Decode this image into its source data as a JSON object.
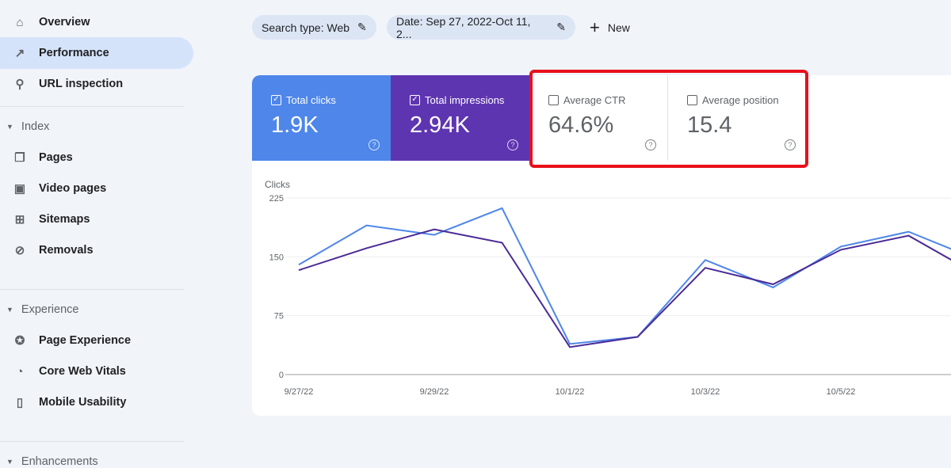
{
  "sidebar": {
    "items": [
      {
        "label": "Overview",
        "icon": "home-icon"
      },
      {
        "label": "Performance",
        "icon": "trending-up-icon",
        "active": true
      },
      {
        "label": "URL inspection",
        "icon": "search-icon"
      }
    ],
    "sections": [
      {
        "label": "Index",
        "items": [
          {
            "label": "Pages",
            "icon": "pages-icon"
          },
          {
            "label": "Video pages",
            "icon": "video-pages-icon"
          },
          {
            "label": "Sitemaps",
            "icon": "sitemap-icon"
          },
          {
            "label": "Removals",
            "icon": "eye-off-icon"
          }
        ]
      },
      {
        "label": "Experience",
        "items": [
          {
            "label": "Page Experience",
            "icon": "page-experience-icon"
          },
          {
            "label": "Core Web Vitals",
            "icon": "gauge-icon"
          },
          {
            "label": "Mobile Usability",
            "icon": "phone-icon"
          }
        ]
      },
      {
        "label": "Enhancements",
        "items": []
      }
    ]
  },
  "filters": {
    "search_type": "Search type: Web",
    "date": "Date: Sep 27, 2022-Oct 11, 2...",
    "new_label": "New"
  },
  "metrics": [
    {
      "label": "Total clicks",
      "value": "1.9K",
      "checked": true,
      "color": "#4e86ea"
    },
    {
      "label": "Total impressions",
      "value": "2.94K",
      "checked": true,
      "color": "#5e35b1"
    },
    {
      "label": "Average CTR",
      "value": "64.6%",
      "checked": false
    },
    {
      "label": "Average position",
      "value": "15.4",
      "checked": false
    }
  ],
  "highlight_color": "#e8101b",
  "chart_data": {
    "type": "line",
    "ylabel": "Clicks",
    "ylim": [
      0,
      225
    ],
    "yticks": [
      "0",
      "75",
      "150",
      "225"
    ],
    "x": [
      "9/27/22",
      "9/28/22",
      "9/29/22",
      "9/30/22",
      "10/1/22",
      "10/2/22",
      "10/3/22",
      "10/4/22",
      "10/5/22",
      "10/6/22",
      "10/7/22"
    ],
    "xtick_labels": [
      "9/27/22",
      "9/29/22",
      "10/1/22",
      "10/3/22",
      "10/5/22"
    ],
    "grid": true,
    "series": [
      {
        "color": "#4e86ea",
        "values": [
          140,
          190,
          178,
          212,
          39,
          48,
          146,
          111,
          163,
          182,
          147
        ]
      },
      {
        "color": "#4b2a96",
        "values": [
          133,
          161,
          185,
          168,
          35,
          48,
          136,
          115,
          159,
          177,
          128
        ]
      }
    ]
  }
}
